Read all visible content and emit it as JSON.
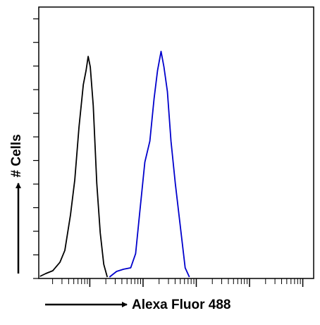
{
  "chart_data": {
    "type": "line",
    "x_label": "Alexa Fluor 488",
    "y_label": "# Cells",
    "xscale": "log",
    "xlim": [
      1.1,
      160000
    ],
    "ylim": [
      0,
      115
    ],
    "xticks": [
      2,
      3,
      4,
      5,
      6,
      7,
      8,
      9,
      10,
      20,
      30,
      40,
      50,
      60,
      70,
      80,
      90,
      100,
      200,
      300,
      400,
      500,
      600,
      700,
      800,
      900,
      1000,
      2000,
      3000,
      4000,
      5000,
      6000,
      7000,
      8000,
      9000,
      10000,
      20000,
      30000,
      40000,
      50000,
      60000,
      70000,
      80000,
      90000,
      100000
    ],
    "yticks": [
      0,
      10,
      20,
      30,
      40,
      50,
      60,
      70,
      80,
      90,
      100,
      110
    ],
    "series": [
      {
        "color": "#000000",
        "x": [
          1.16,
          1.49,
          2.02,
          2.75,
          3.4,
          4.34,
          5.22,
          6.27,
          7.54,
          8.51,
          9.33,
          10.2,
          11.6,
          13.5,
          15.7,
          18.3,
          21.3
        ],
        "values": [
          0.9,
          2.1,
          3.3,
          6.9,
          11.9,
          26.9,
          41.8,
          64.2,
          82.1,
          88.1,
          94.1,
          89.6,
          73.2,
          40.3,
          19.4,
          6.0,
          0.6
        ]
      },
      {
        "color": "#0000cc",
        "x": [
          23.4,
          31.8,
          43.1,
          58.5,
          72.5,
          87.1,
          108,
          134,
          161,
          187,
          218,
          247,
          287,
          335,
          403,
          499,
          618,
          742
        ],
        "values": [
          0.6,
          3.0,
          3.9,
          4.5,
          10.5,
          28.4,
          49.3,
          58.2,
          76.2,
          88.1,
          96.2,
          89.6,
          79.2,
          58.2,
          40.3,
          22.4,
          4.5,
          0.6
        ]
      }
    ]
  }
}
